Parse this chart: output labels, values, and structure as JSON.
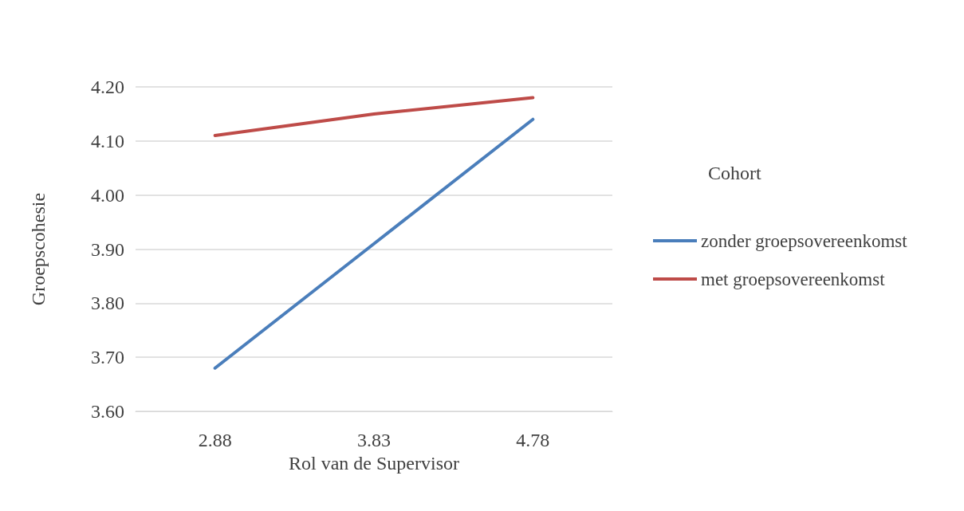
{
  "chart_data": {
    "type": "line",
    "xlabel": "Rol van de Supervisor",
    "ylabel": "Groepscohesie",
    "legend_title": "Cohort",
    "categories": [
      "2.88",
      "3.83",
      "4.78"
    ],
    "series": [
      {
        "name": "zonder groepsovereenkomst",
        "color": "#4a7ebb",
        "values": [
          3.68,
          3.91,
          4.14
        ]
      },
      {
        "name": "met groepsovereenkomst",
        "color": "#be4b48",
        "values": [
          4.11,
          4.15,
          4.18
        ]
      }
    ],
    "ylim": [
      3.6,
      4.2
    ],
    "yticks": [
      {
        "value": 3.6,
        "label": "3.60"
      },
      {
        "value": 3.7,
        "label": "3.70"
      },
      {
        "value": 3.8,
        "label": "3.80"
      },
      {
        "value": 3.9,
        "label": "3.90"
      },
      {
        "value": 4.0,
        "label": "4.00"
      },
      {
        "value": 4.1,
        "label": "4.10"
      },
      {
        "value": 4.2,
        "label": "4.20"
      }
    ],
    "grid": "y",
    "legend": "right",
    "marker": "none",
    "line_style": "solid"
  }
}
